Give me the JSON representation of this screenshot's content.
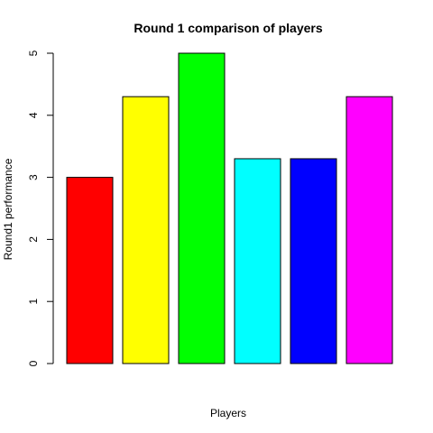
{
  "chart_data": {
    "type": "bar",
    "title": "Round 1 comparison of players",
    "xlabel": "Players",
    "ylabel": "Round1 performance",
    "categories": [
      "",
      "",
      "",
      "",
      "",
      ""
    ],
    "values": [
      3.0,
      4.3,
      5.0,
      3.3,
      3.3,
      4.3
    ],
    "colors": [
      "#ff0000",
      "#ffff00",
      "#00ff00",
      "#00ffff",
      "#0000ff",
      "#ff00ff"
    ],
    "ylim": [
      0,
      5
    ],
    "yticks": [
      0,
      1,
      2,
      3,
      4,
      5
    ],
    "grid": false,
    "legend": "none"
  }
}
